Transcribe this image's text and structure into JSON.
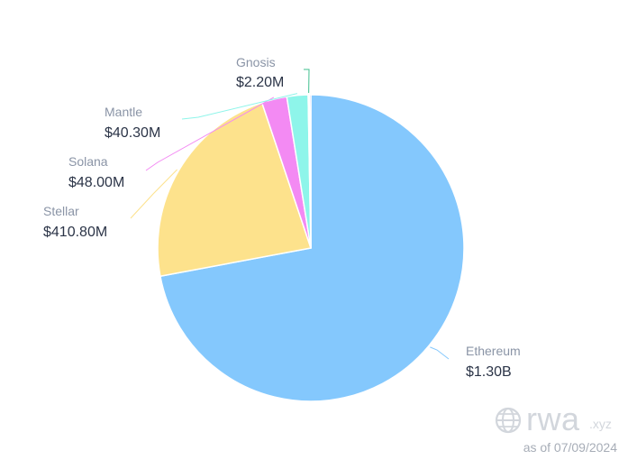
{
  "chart_data": {
    "type": "pie",
    "title": "",
    "unit": "USD",
    "slices": [
      {
        "label": "Ethereum",
        "value": 1300000000,
        "value_label": "$1.30B",
        "color": "#84c8fd"
      },
      {
        "label": "Stellar",
        "value": 410800000,
        "value_label": "$410.80M",
        "color": "#fde28c"
      },
      {
        "label": "Solana",
        "value": 48000000,
        "value_label": "$48.00M",
        "color": "#f38af3"
      },
      {
        "label": "Mantle",
        "value": 40300000,
        "value_label": "$40.30M",
        "color": "#8ef5ea"
      },
      {
        "label": "Gnosis",
        "value": 2200000,
        "value_label": "$2.20M",
        "color": "#3fbf8e"
      }
    ],
    "extra_slice_color": "#9b8ff0",
    "legend": "none"
  },
  "watermark": {
    "brand": "rwa",
    "tld": ".xyz",
    "as_of": "as of 07/09/2024"
  }
}
